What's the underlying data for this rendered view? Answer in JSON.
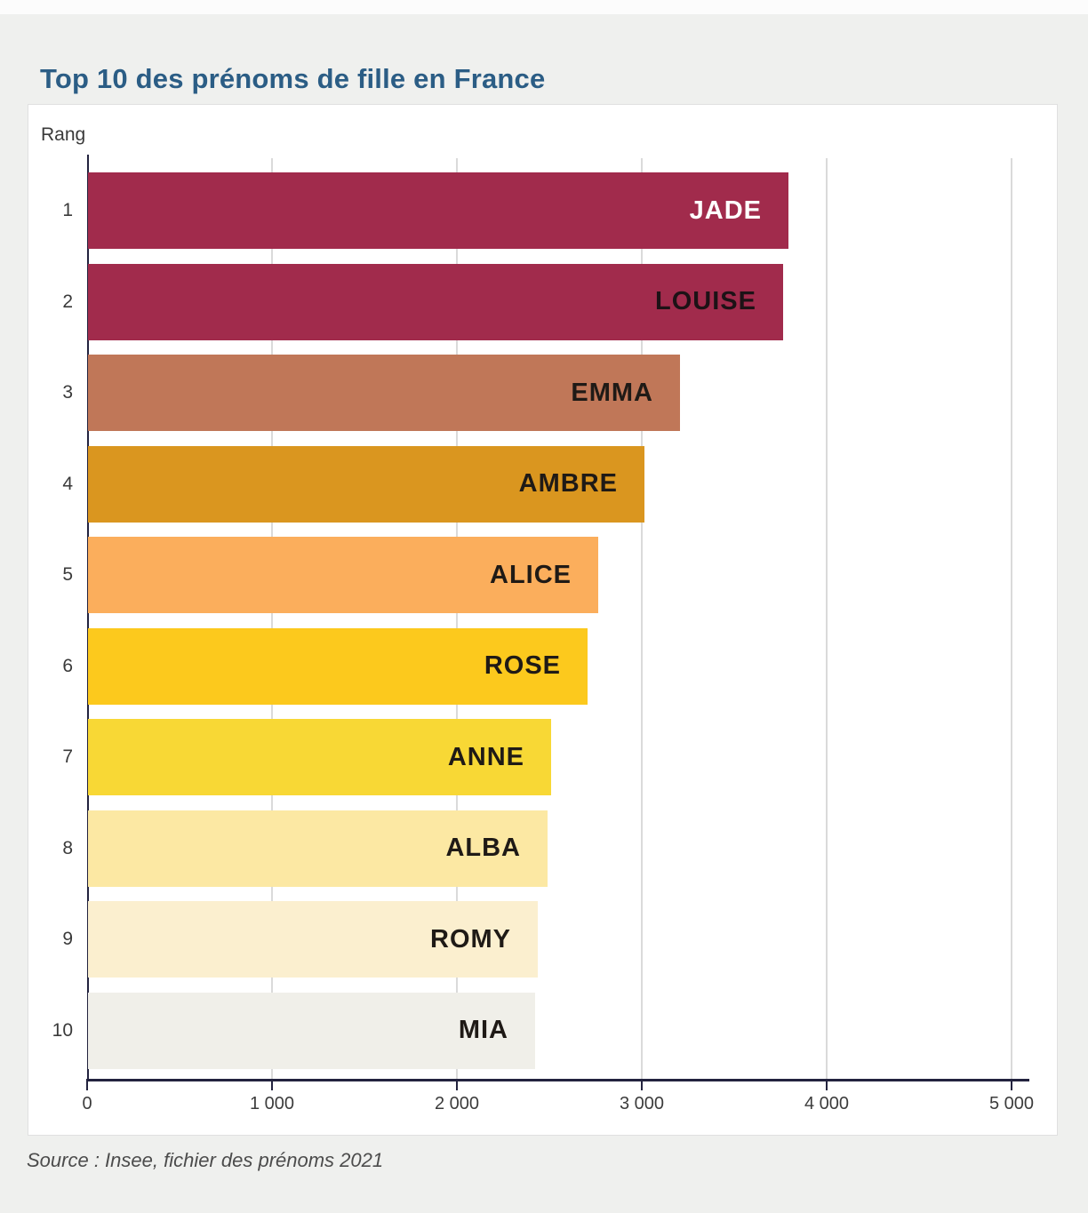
{
  "page": {
    "title": "Top 10 des prénoms de fille en France",
    "source": "Source : Insee, fichier des prénoms 2021"
  },
  "chart_data": {
    "type": "bar",
    "orientation": "horizontal",
    "title": "Top 10 des prénoms de fille en France",
    "rank_axis_label": "Rang",
    "categories": [
      "1",
      "2",
      "3",
      "4",
      "5",
      "6",
      "7",
      "8",
      "9",
      "10"
    ],
    "names": [
      "JADE",
      "LOUISE",
      "EMMA",
      "AMBRE",
      "ALICE",
      "ROSE",
      "ANNE",
      "ALBA",
      "ROMY",
      "MIA"
    ],
    "values": [
      3790,
      3760,
      3200,
      3010,
      2760,
      2700,
      2505,
      2485,
      2435,
      2420
    ],
    "bar_colors": [
      "#a12b4c",
      "#a12b4c",
      "#c07758",
      "#da961f",
      "#fbae5c",
      "#fcc91d",
      "#f8d835",
      "#fce8a3",
      "#fbefcf",
      "#f0efe9"
    ],
    "label_colors": [
      "#ffffff",
      "#1d1216",
      "#1f1a16",
      "#1f1a16",
      "#1f1a16",
      "#1f1a16",
      "#1f1a16",
      "#1f1a16",
      "#1f1a16",
      "#1f1a16"
    ],
    "xlim": [
      0,
      5000
    ],
    "xticks": [
      0,
      1000,
      2000,
      3000,
      4000,
      5000
    ],
    "xtick_labels": [
      "0",
      "1 000",
      "2 000",
      "3 000",
      "4 000",
      "5 000"
    ],
    "grid": "vertical-gridlines-on",
    "legend": "none",
    "source": "Source : Insee, fichier des prénoms 2021"
  },
  "colors": {
    "title": "#2b5d85",
    "axis": "#23233f",
    "gridline": "#dadada",
    "card_background": "#ffffff",
    "page_background": "#eff0ee",
    "tick_text": "#3c3c3c",
    "source_text": "#4c4c4c"
  }
}
